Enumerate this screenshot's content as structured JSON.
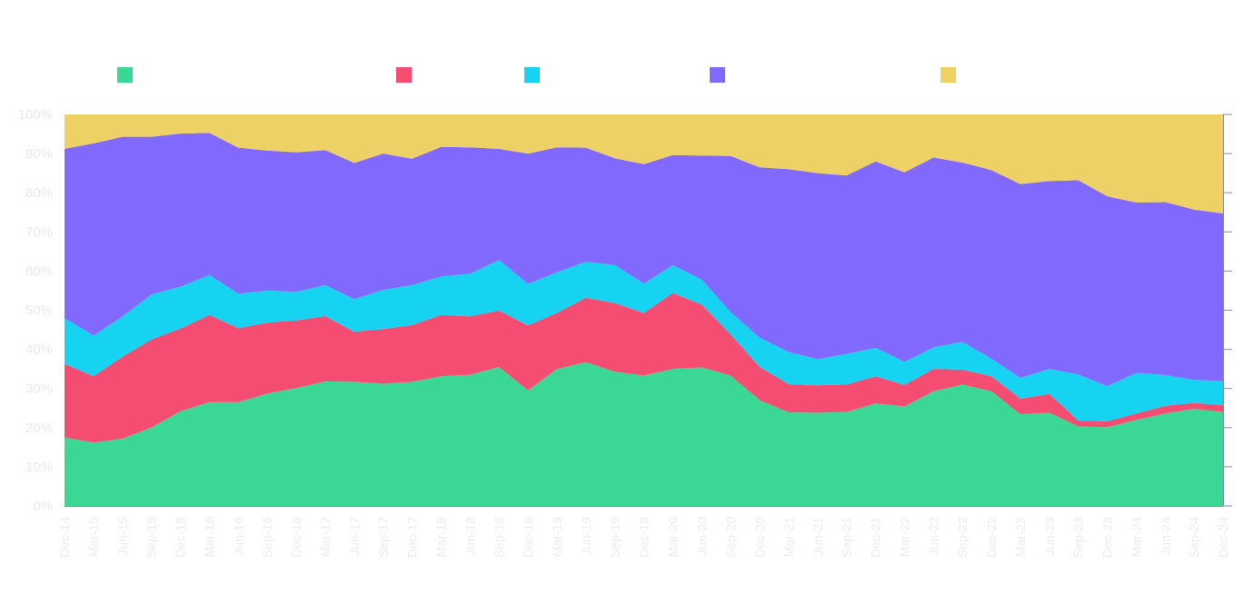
{
  "chart_data": {
    "type": "area",
    "stacked": true,
    "normalized": true,
    "title": "",
    "xlabel": "",
    "ylabel": "",
    "ylim": [
      0,
      100
    ],
    "yticks": [
      "0%",
      "10%",
      "20%",
      "30%",
      "40%",
      "50%",
      "60%",
      "70%",
      "80%",
      "90%",
      "100%"
    ],
    "grid": false,
    "legend_position": "top",
    "categories": [
      "Dec-14",
      "Mar-15",
      "Jun-15",
      "Sep-15",
      "Dec-15",
      "Mar-16",
      "Jun-16",
      "Sep-16",
      "Dec-16",
      "Mar-17",
      "Jun-17",
      "Sep-17",
      "Dec-17",
      "Mar-18",
      "Jun-18",
      "Sep-18",
      "Dec-18",
      "Mar-19",
      "Jun-19",
      "Sep-19",
      "Dec-19",
      "Mar-20",
      "Jun-20",
      "Sep-20",
      "Dec-20",
      "Mar-21",
      "Jun-21",
      "Sep-21",
      "Dec-21",
      "Mar-22",
      "Jun-22",
      "Sep-22",
      "Dec-22",
      "Mar-23",
      "Jun-23",
      "Sep-23",
      "Dec-23",
      "Mar-24",
      "Jun-24",
      "Sep-24",
      "Dec-24"
    ],
    "series": [
      {
        "color": "#3ad894",
        "values": [
          17.5,
          16.2,
          17.2,
          20,
          24.2,
          26.5,
          26.5,
          28.7,
          30.1,
          31.8,
          31.7,
          31.2,
          31.7,
          33.1,
          33.5,
          35.5,
          29.5,
          35,
          36.7,
          34.3,
          33.3,
          35,
          35.4,
          33.3,
          27,
          23.9,
          23.8,
          24,
          26.2,
          25.4,
          29.3,
          31,
          29.3,
          23.4,
          23.8,
          20.3,
          20.1,
          22,
          23.6,
          24.8,
          24
        ]
      },
      {
        "color": "#f54c72",
        "values": [
          18.8,
          16.9,
          20.9,
          22.5,
          21.1,
          22.3,
          18.9,
          18.1,
          17.3,
          16.7,
          12.8,
          14,
          14.5,
          15.7,
          14.9,
          14.4,
          16.6,
          14.3,
          16.5,
          17.5,
          16,
          19.4,
          16,
          10.5,
          8.5,
          7.2,
          7,
          7,
          6.9,
          5.5,
          5.7,
          3.8,
          3.8,
          4,
          4.8,
          1.5,
          1.5,
          1.6,
          2,
          1.5,
          1.7
        ]
      },
      {
        "color": "#17d3f2",
        "values": [
          11.7,
          10.4,
          10.3,
          11.5,
          10.7,
          10.2,
          8.8,
          8.2,
          7.3,
          7.9,
          8.3,
          10,
          10.2,
          9.8,
          10.9,
          12.9,
          10.6,
          10.4,
          9.2,
          9.7,
          7.5,
          7.1,
          6.4,
          5.7,
          7.5,
          8.2,
          6.7,
          7.8,
          7.3,
          5.9,
          5.5,
          7.1,
          4.5,
          5.3,
          6.4,
          11.8,
          9,
          10.4,
          7.8,
          5.9,
          6.2
        ]
      },
      {
        "color": "#8269fe",
        "values": [
          43.2,
          49.1,
          45.9,
          40.3,
          39.1,
          36.3,
          37.3,
          35.8,
          35.6,
          34.5,
          34.8,
          34.8,
          32.3,
          33.1,
          32.3,
          28.4,
          33.3,
          31.9,
          29.1,
          27.3,
          30.5,
          28.1,
          31.7,
          39.9,
          43.5,
          46.7,
          47.5,
          45.6,
          47.6,
          48.4,
          48.5,
          45.8,
          48.2,
          49.5,
          48,
          49.6,
          48.5,
          43.5,
          44.2,
          43.5,
          42.8
        ]
      },
      {
        "color": "#eed165",
        "values": [
          8.8,
          7.4,
          5.7,
          5.7,
          4.9,
          4.7,
          8.5,
          9.2,
          9.7,
          9.1,
          12.4,
          10,
          11.3,
          8.3,
          8.4,
          8.8,
          10,
          8.4,
          8.5,
          11.2,
          12.7,
          10.4,
          10.5,
          10.6,
          13.5,
          14,
          15,
          15.6,
          12,
          14.8,
          11,
          12.3,
          14.2,
          17.8,
          17,
          16.8,
          20.9,
          22.5,
          22.4,
          24.3,
          25.3
        ]
      }
    ]
  }
}
